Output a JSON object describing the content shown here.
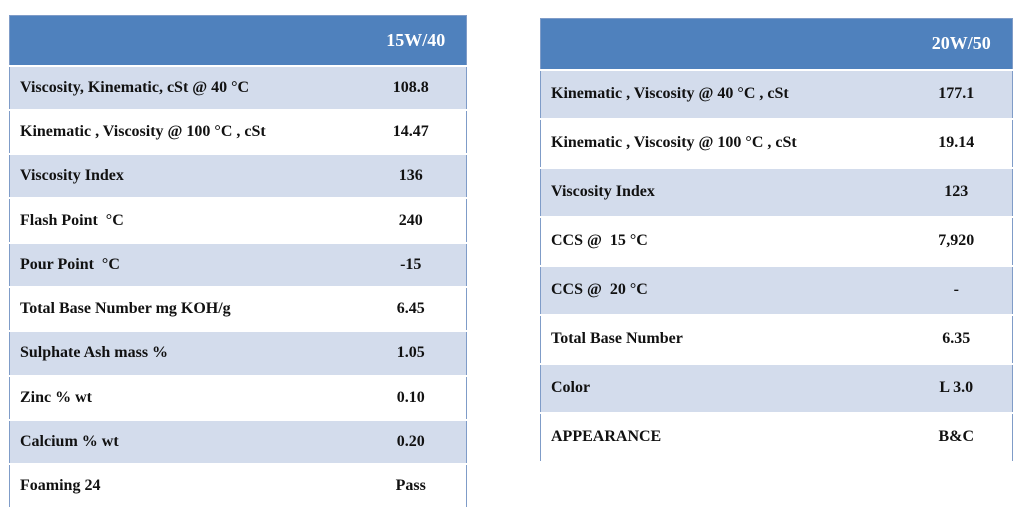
{
  "tables": [
    {
      "header": "15W/40",
      "rows": [
        [
          "Viscosity, Kinematic, cSt @ 40 °C",
          "108.8"
        ],
        [
          "Kinematic , Viscosity @ 100 °C , cSt",
          "14.47"
        ],
        [
          "Viscosity Index",
          "136"
        ],
        [
          "Flash Point  °C",
          "240"
        ],
        [
          "Pour Point  °C",
          "-15"
        ],
        [
          "Total Base Number mg KOH/g",
          "6.45"
        ],
        [
          "Sulphate Ash mass %",
          "1.05"
        ],
        [
          "Zinc % wt",
          "0.10"
        ],
        [
          "Calcium % wt",
          "0.20"
        ],
        [
          "Foaming 24",
          "Pass"
        ]
      ]
    },
    {
      "header": "20W/50",
      "rows": [
        [
          "Kinematic , Viscosity @ 40 °C , cSt",
          "177.1"
        ],
        [
          "Kinematic , Viscosity @ 100 °C , cSt",
          "19.14"
        ],
        [
          "Viscosity Index",
          "123"
        ],
        [
          "CCS @  15 °C",
          "7,920"
        ],
        [
          "CCS @  20 °C",
          "-"
        ],
        [
          "Total Base Number",
          "6.35"
        ],
        [
          "Color",
          "L 3.0"
        ],
        [
          "APPEARANCE",
          "B&C"
        ]
      ]
    }
  ]
}
